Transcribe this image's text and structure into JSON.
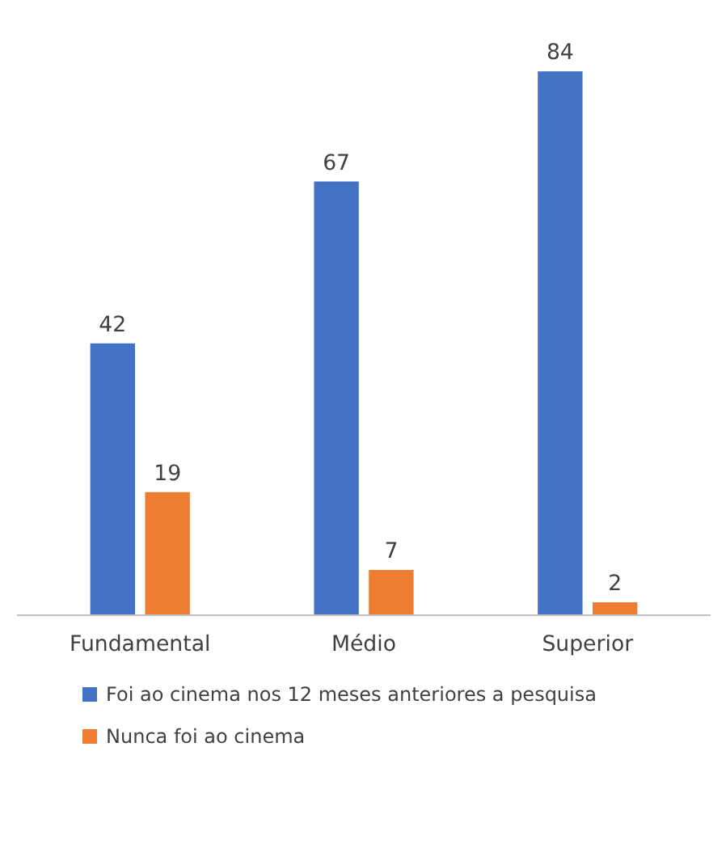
{
  "chart_data": {
    "type": "bar",
    "categories": [
      "Fundamental",
      "Médio",
      "Superior"
    ],
    "series": [
      {
        "name": "Foi ao cinema nos 12 meses anteriores a pesquisa",
        "color": "#4472c4",
        "values": [
          42,
          67,
          84
        ]
      },
      {
        "name": "Nunca foi ao cinema",
        "color": "#ed7d31",
        "values": [
          19,
          7,
          2
        ]
      }
    ],
    "data_labels": true,
    "legend": "bottom"
  }
}
